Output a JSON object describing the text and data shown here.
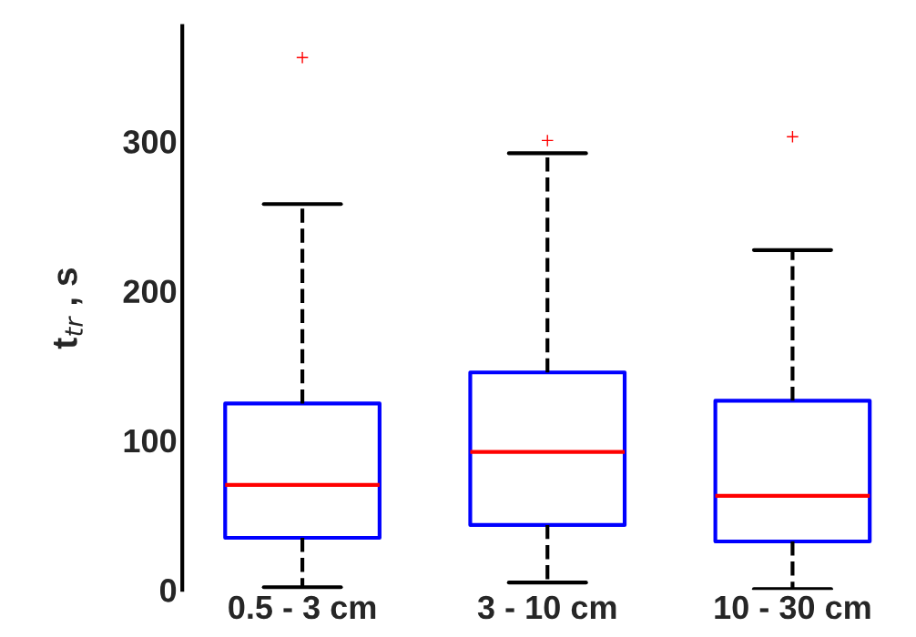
{
  "chart_data": {
    "type": "box",
    "ylabel": "t$_{tr}$ , s",
    "categories": [
      "0.5 - 3 cm",
      "3 - 10 cm",
      "10 - 30 cm"
    ],
    "boxes": [
      {
        "low": 1.8,
        "q1": 34.8,
        "median": 70.2,
        "q3": 124.6,
        "high": 258,
        "outliers": [
          356
        ]
      },
      {
        "low": 4.9,
        "q1": 43.4,
        "median": 92.2,
        "q3": 145.4,
        "high": 292,
        "outliers": [
          300.5
        ]
      },
      {
        "low": 0.6,
        "q1": 32.4,
        "median": 62.9,
        "q3": 126.5,
        "high": 227.2,
        "outliers": [
          303
        ]
      }
    ],
    "color": "#0000ff",
    "ylim": [
      0,
      377
    ],
    "yticks": [
      0,
      100,
      200,
      300
    ],
    "grid": false
  }
}
